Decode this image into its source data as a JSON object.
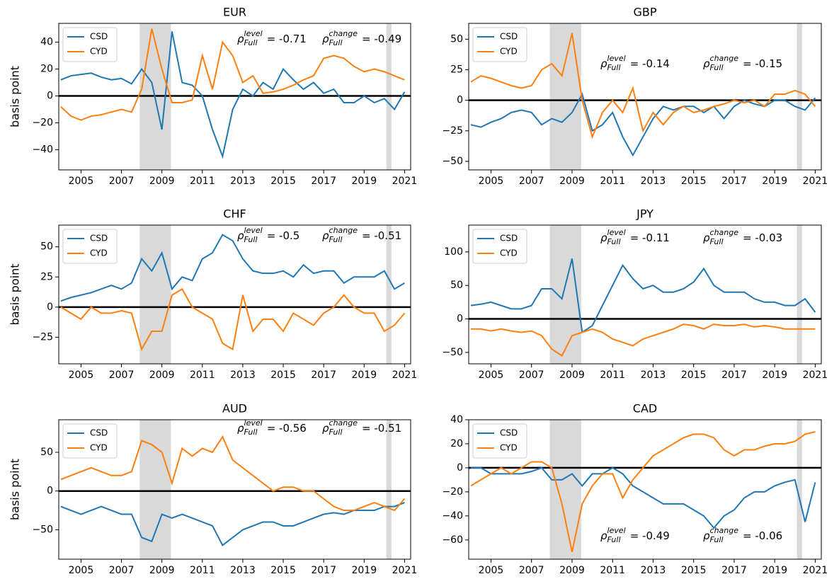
{
  "chart_data": [
    {
      "type": "line",
      "title": "EUR",
      "ylabel": "basis point",
      "legend": "upper left",
      "x": [
        2004,
        2004.5,
        2005,
        2005.5,
        2006,
        2006.5,
        2007,
        2007.5,
        2008,
        2008.5,
        2009,
        2009.5,
        2010,
        2010.5,
        2011,
        2011.5,
        2012,
        2012.5,
        2013,
        2013.5,
        2014,
        2014.5,
        2015,
        2015.5,
        2016,
        2016.5,
        2017,
        2017.5,
        2018,
        2018.5,
        2019,
        2019.5,
        2020,
        2020.5,
        2021
      ],
      "series": [
        {
          "name": "CSD",
          "color": "#1f77b4",
          "values": [
            12,
            15,
            16,
            17,
            14,
            12,
            13,
            9,
            20,
            10,
            -25,
            48,
            10,
            8,
            0,
            -25,
            -45,
            -10,
            5,
            0,
            10,
            5,
            20,
            12,
            5,
            10,
            2,
            5,
            -5,
            -5,
            0,
            -5,
            -2,
            -10,
            3
          ]
        },
        {
          "name": "CYD",
          "color": "#ff7f0e",
          "values": [
            -8,
            -15,
            -18,
            -15,
            -14,
            -12,
            -10,
            -12,
            5,
            50,
            20,
            -5,
            -5,
            -3,
            30,
            5,
            40,
            30,
            10,
            15,
            2,
            3,
            5,
            8,
            12,
            15,
            28,
            30,
            28,
            22,
            18,
            20,
            18,
            15,
            12
          ]
        }
      ],
      "xlim": [
        2003.9,
        2021.3
      ],
      "xticks": [
        2005,
        2007,
        2009,
        2011,
        2013,
        2015,
        2017,
        2019,
        2021
      ],
      "ylim": [
        -55,
        54
      ],
      "yticks": [
        {
          "value": -40,
          "label": "−40"
        },
        {
          "value": -20,
          "label": "−20"
        },
        0,
        20,
        40
      ],
      "shaded": [
        [
          2007.9,
          2009.45
        ],
        [
          2020.1,
          2020.35
        ]
      ],
      "hline": 0,
      "annotations": [
        {
          "symbol": "ρ",
          "sub": "Full",
          "sup": "level",
          "text": "= -0.71"
        },
        {
          "symbol": "ρ",
          "sub": "Full",
          "sup": "change",
          "text": "= -0.49"
        }
      ]
    },
    {
      "type": "line",
      "title": "GBP",
      "legend": "upper left",
      "x": [
        2004,
        2004.5,
        2005,
        2005.5,
        2006,
        2006.5,
        2007,
        2007.5,
        2008,
        2008.5,
        2009,
        2009.5,
        2010,
        2010.5,
        2011,
        2011.5,
        2012,
        2012.5,
        2013,
        2013.5,
        2014,
        2014.5,
        2015,
        2015.5,
        2016,
        2016.5,
        2017,
        2017.5,
        2018,
        2018.5,
        2019,
        2019.5,
        2020,
        2020.5,
        2021
      ],
      "series": [
        {
          "name": "CSD",
          "color": "#1f77b4",
          "values": [
            -20,
            -22,
            -18,
            -15,
            -10,
            -8,
            -10,
            -20,
            -15,
            -18,
            -10,
            5,
            -25,
            -20,
            -10,
            -30,
            -45,
            -30,
            -15,
            -5,
            -8,
            -5,
            -5,
            -10,
            -5,
            -15,
            -5,
            0,
            -3,
            -5,
            0,
            0,
            -5,
            -8,
            2
          ]
        },
        {
          "name": "CYD",
          "color": "#ff7f0e",
          "values": [
            15,
            20,
            18,
            15,
            12,
            10,
            12,
            25,
            30,
            20,
            55,
            0,
            -30,
            -10,
            0,
            -10,
            10,
            -25,
            -10,
            -20,
            -10,
            -5,
            -10,
            -8,
            -5,
            -3,
            0,
            -2,
            0,
            -5,
            5,
            5,
            8,
            5,
            -5
          ]
        }
      ],
      "xlim": [
        2003.9,
        2021.3
      ],
      "xticks": [
        2005,
        2007,
        2009,
        2011,
        2013,
        2015,
        2017,
        2019,
        2021
      ],
      "ylim": [
        -57,
        63
      ],
      "yticks": [
        {
          "value": -50,
          "label": "−50"
        },
        {
          "value": -25,
          "label": "−25"
        },
        0,
        25,
        50
      ],
      "shaded": [
        [
          2007.9,
          2009.45
        ],
        [
          2020.1,
          2020.35
        ]
      ],
      "hline": 0,
      "annotations": [
        {
          "symbol": "ρ",
          "sub": "Full",
          "sup": "level",
          "text": "= -0.14"
        },
        {
          "symbol": "ρ",
          "sub": "Full",
          "sup": "change",
          "text": "= -0.15"
        }
      ]
    },
    {
      "type": "line",
      "title": "CHF",
      "ylabel": "basis point",
      "legend": "upper left",
      "x": [
        2004,
        2004.5,
        2005,
        2005.5,
        2006,
        2006.5,
        2007,
        2007.5,
        2008,
        2008.5,
        2009,
        2009.5,
        2010,
        2010.5,
        2011,
        2011.5,
        2012,
        2012.5,
        2013,
        2013.5,
        2014,
        2014.5,
        2015,
        2015.5,
        2016,
        2016.5,
        2017,
        2017.5,
        2018,
        2018.5,
        2019,
        2019.5,
        2020,
        2020.5,
        2021
      ],
      "series": [
        {
          "name": "CSD",
          "color": "#1f77b4",
          "values": [
            5,
            8,
            10,
            12,
            15,
            18,
            15,
            20,
            40,
            30,
            45,
            15,
            25,
            22,
            40,
            45,
            60,
            55,
            40,
            30,
            28,
            28,
            30,
            25,
            35,
            28,
            30,
            30,
            20,
            25,
            25,
            25,
            30,
            15,
            20
          ]
        },
        {
          "name": "CYD",
          "color": "#ff7f0e",
          "values": [
            0,
            -5,
            -10,
            0,
            -5,
            -5,
            -3,
            -5,
            -35,
            -20,
            -20,
            10,
            15,
            0,
            -5,
            -10,
            -30,
            -35,
            10,
            -20,
            -10,
            -10,
            -20,
            -5,
            -10,
            -15,
            -5,
            0,
            10,
            0,
            -5,
            -5,
            -20,
            -15,
            -5
          ]
        }
      ],
      "xlim": [
        2003.9,
        2021.3
      ],
      "xticks": [
        2005,
        2007,
        2009,
        2011,
        2013,
        2015,
        2017,
        2019,
        2021
      ],
      "ylim": [
        -47,
        68
      ],
      "yticks": [
        {
          "value": -25,
          "label": "−25"
        },
        0,
        25,
        50
      ],
      "shaded": [
        [
          2007.9,
          2009.45
        ],
        [
          2020.1,
          2020.35
        ]
      ],
      "hline": 0,
      "annotations": [
        {
          "symbol": "ρ",
          "sub": "Full",
          "sup": "level",
          "text": "= -0.5"
        },
        {
          "symbol": "ρ",
          "sub": "Full",
          "sup": "change",
          "text": "= -0.51"
        }
      ]
    },
    {
      "type": "line",
      "title": "JPY",
      "legend": "upper left",
      "x": [
        2004,
        2004.5,
        2005,
        2005.5,
        2006,
        2006.5,
        2007,
        2007.5,
        2008,
        2008.5,
        2009,
        2009.5,
        2010,
        2010.5,
        2011,
        2011.5,
        2012,
        2012.5,
        2013,
        2013.5,
        2014,
        2014.5,
        2015,
        2015.5,
        2016,
        2016.5,
        2017,
        2017.5,
        2018,
        2018.5,
        2019,
        2019.5,
        2020,
        2020.5,
        2021
      ],
      "series": [
        {
          "name": "CSD",
          "color": "#1f77b4",
          "values": [
            20,
            22,
            25,
            20,
            15,
            15,
            20,
            45,
            45,
            30,
            90,
            -20,
            -10,
            20,
            50,
            80,
            60,
            45,
            50,
            40,
            40,
            45,
            55,
            75,
            50,
            40,
            40,
            40,
            30,
            25,
            25,
            20,
            20,
            30,
            10
          ]
        },
        {
          "name": "CYD",
          "color": "#ff7f0e",
          "values": [
            -15,
            -15,
            -18,
            -15,
            -18,
            -20,
            -18,
            -25,
            -45,
            -55,
            -25,
            -20,
            -15,
            -20,
            -30,
            -35,
            -40,
            -30,
            -25,
            -20,
            -15,
            -8,
            -10,
            -15,
            -8,
            -10,
            -10,
            -8,
            -12,
            -10,
            -12,
            -15,
            -15,
            -15,
            -15
          ]
        }
      ],
      "xlim": [
        2003.9,
        2021.3
      ],
      "xticks": [
        2005,
        2007,
        2009,
        2011,
        2013,
        2015,
        2017,
        2019,
        2021
      ],
      "ylim": [
        -67,
        140
      ],
      "yticks": [
        {
          "value": -50,
          "label": "−50"
        },
        0,
        50,
        100
      ],
      "shaded": [
        [
          2007.9,
          2009.45
        ],
        [
          2020.1,
          2020.35
        ]
      ],
      "hline": 0,
      "annotations": [
        {
          "symbol": "ρ",
          "sub": "Full",
          "sup": "level",
          "text": "= -0.11"
        },
        {
          "symbol": "ρ",
          "sub": "Full",
          "sup": "change",
          "text": "= -0.03"
        }
      ]
    },
    {
      "type": "line",
      "title": "AUD",
      "ylabel": "basis point",
      "legend": "upper left",
      "x": [
        2004,
        2004.5,
        2005,
        2005.5,
        2006,
        2006.5,
        2007,
        2007.5,
        2008,
        2008.5,
        2009,
        2009.5,
        2010,
        2010.5,
        2011,
        2011.5,
        2012,
        2012.5,
        2013,
        2013.5,
        2014,
        2014.5,
        2015,
        2015.5,
        2016,
        2016.5,
        2017,
        2017.5,
        2018,
        2018.5,
        2019,
        2019.5,
        2020,
        2020.5,
        2021
      ],
      "series": [
        {
          "name": "CSD",
          "color": "#1f77b4",
          "values": [
            -20,
            -25,
            -30,
            -25,
            -20,
            -25,
            -30,
            -30,
            -60,
            -65,
            -30,
            -35,
            -30,
            -35,
            -40,
            -45,
            -70,
            -60,
            -50,
            -45,
            -40,
            -40,
            -45,
            -45,
            -40,
            -35,
            -30,
            -28,
            -30,
            -25,
            -25,
            -25,
            -20,
            -20,
            -15
          ]
        },
        {
          "name": "CYD",
          "color": "#ff7f0e",
          "values": [
            15,
            20,
            25,
            30,
            25,
            20,
            20,
            25,
            65,
            60,
            50,
            10,
            55,
            45,
            55,
            50,
            70,
            40,
            30,
            20,
            10,
            0,
            5,
            5,
            0,
            0,
            -10,
            -20,
            -25,
            -25,
            -20,
            -15,
            -20,
            -25,
            -10
          ]
        }
      ],
      "xlim": [
        2003.9,
        2021.3
      ],
      "xticks": [
        2005,
        2007,
        2009,
        2011,
        2013,
        2015,
        2017,
        2019,
        2021
      ],
      "ylim": [
        -88,
        92
      ],
      "yticks": [
        {
          "value": -50,
          "label": "−50"
        },
        0,
        50
      ],
      "shaded": [
        [
          2007.9,
          2009.45
        ],
        [
          2020.1,
          2020.35
        ]
      ],
      "hline": 0,
      "annotations": [
        {
          "symbol": "ρ",
          "sub": "Full",
          "sup": "level",
          "text": "= -0.56"
        },
        {
          "symbol": "ρ",
          "sub": "Full",
          "sup": "change",
          "text": "= -0.51"
        }
      ]
    },
    {
      "type": "line",
      "title": "CAD",
      "legend": "upper left",
      "x": [
        2004,
        2004.5,
        2005,
        2005.5,
        2006,
        2006.5,
        2007,
        2007.5,
        2008,
        2008.5,
        2009,
        2009.5,
        2010,
        2010.5,
        2011,
        2011.5,
        2012,
        2012.5,
        2013,
        2013.5,
        2014,
        2014.5,
        2015,
        2015.5,
        2016,
        2016.5,
        2017,
        2017.5,
        2018,
        2018.5,
        2019,
        2019.5,
        2020,
        2020.5,
        2021
      ],
      "series": [
        {
          "name": "CSD",
          "color": "#1f77b4",
          "values": [
            0,
            0,
            -5,
            -5,
            -5,
            -5,
            -3,
            0,
            -10,
            -10,
            -5,
            -15,
            -5,
            -5,
            0,
            -5,
            -15,
            -20,
            -25,
            -30,
            -30,
            -30,
            -35,
            -40,
            -50,
            -40,
            -35,
            -25,
            -20,
            -20,
            -15,
            -12,
            -10,
            -45,
            -12
          ]
        },
        {
          "name": "CYD",
          "color": "#ff7f0e",
          "values": [
            -15,
            -10,
            -5,
            0,
            -5,
            0,
            5,
            5,
            0,
            -30,
            -70,
            -30,
            -15,
            -5,
            -5,
            -25,
            -10,
            0,
            10,
            15,
            20,
            25,
            28,
            28,
            25,
            15,
            10,
            15,
            15,
            18,
            20,
            20,
            22,
            28,
            30
          ]
        }
      ],
      "xlim": [
        2003.9,
        2021.3
      ],
      "xticks": [
        2005,
        2007,
        2009,
        2011,
        2013,
        2015,
        2017,
        2019,
        2021
      ],
      "ylim": [
        -76,
        40
      ],
      "yticks": [
        {
          "value": -60,
          "label": "−60"
        },
        {
          "value": -40,
          "label": "−40"
        },
        {
          "value": -20,
          "label": "−20"
        },
        0,
        20,
        40
      ],
      "shaded": [
        [
          2007.9,
          2009.45
        ],
        [
          2020.1,
          2020.35
        ]
      ],
      "hline": 0,
      "annotations": [
        {
          "symbol": "ρ",
          "sub": "Full",
          "sup": "level",
          "text": "= -0.49"
        },
        {
          "symbol": "ρ",
          "sub": "Full",
          "sup": "change",
          "text": "= -0.06"
        }
      ]
    }
  ]
}
